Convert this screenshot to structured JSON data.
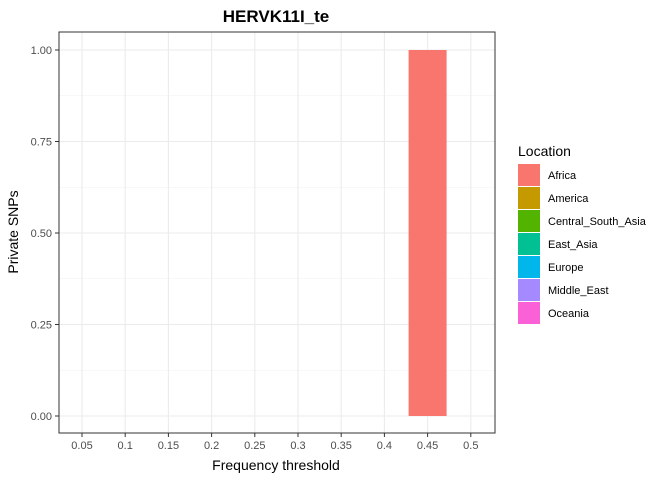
{
  "chart_data": {
    "type": "bar",
    "title": "HERVK11I_te",
    "xlabel": "Frequency threshold",
    "ylabel": "Private SNPs",
    "categories": [
      "0.05",
      "0.1",
      "0.15",
      "0.2",
      "0.25",
      "0.3",
      "0.35",
      "0.4",
      "0.45",
      "0.5"
    ],
    "series": [
      {
        "name": "Africa",
        "color": "#F8766D",
        "values": [
          0,
          0,
          0,
          0,
          0,
          0,
          0,
          0,
          1.0,
          0
        ]
      },
      {
        "name": "America",
        "color": "#C49A00",
        "values": [
          0,
          0,
          0,
          0,
          0,
          0,
          0,
          0,
          0,
          0
        ]
      },
      {
        "name": "Central_South_Asia",
        "color": "#53B400",
        "values": [
          0,
          0,
          0,
          0,
          0,
          0,
          0,
          0,
          0,
          0
        ]
      },
      {
        "name": "East_Asia",
        "color": "#00C094",
        "values": [
          0,
          0,
          0,
          0,
          0,
          0,
          0,
          0,
          0,
          0
        ]
      },
      {
        "name": "Europe",
        "color": "#00B6EB",
        "values": [
          0,
          0,
          0,
          0,
          0,
          0,
          0,
          0,
          0,
          0
        ]
      },
      {
        "name": "Middle_East",
        "color": "#A58AFF",
        "values": [
          0,
          0,
          0,
          0,
          0,
          0,
          0,
          0,
          0,
          0
        ]
      },
      {
        "name": "Oceania",
        "color": "#FB61D7",
        "values": [
          0,
          0,
          0,
          0,
          0,
          0,
          0,
          0,
          0,
          0
        ]
      }
    ],
    "yticks": [
      "0.00",
      "0.25",
      "0.50",
      "0.75",
      "1.00"
    ],
    "ylim": [
      0,
      1
    ],
    "grid": true,
    "legend": {
      "title": "Location",
      "position": "right"
    }
  }
}
